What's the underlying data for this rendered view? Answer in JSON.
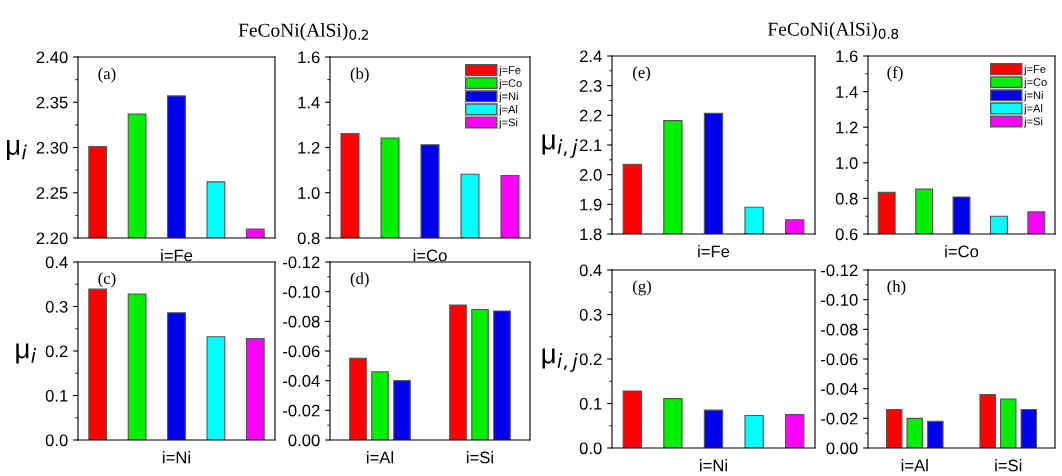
{
  "chart_data": [
    {
      "type": "bar",
      "stacked": true,
      "title": "FeCoNi(AlSi)$_{0.2}$",
      "ylabel": "μ$_{i}$",
      "annotations": [
        "(a)"
      ],
      "categories": [
        null,
        null,
        "i=Fe",
        null,
        null
      ],
      "ylim": [
        2.2,
        2.4
      ],
      "yticks": [
        {
          "value": 2.2,
          "label": "2.20"
        },
        2.25,
        {
          "value": 2.3,
          "label": "2.30"
        },
        2.35,
        {
          "value": 2.4,
          "label": "2.40"
        }
      ],
      "grid": false,
      "legend": false,
      "series": [
        {
          "color": "#ff0000",
          "values": [
            2.301,
            null,
            null,
            null,
            null
          ]
        },
        {
          "color": "#00ee00",
          "values": [
            null,
            2.337,
            null,
            null,
            null
          ]
        },
        {
          "color": "#0000ee",
          "values": [
            null,
            null,
            2.357,
            null,
            null
          ]
        },
        {
          "color": "#00ffff",
          "values": [
            null,
            null,
            null,
            2.262,
            null
          ]
        },
        {
          "color": "#ff00ff",
          "values": [
            null,
            null,
            null,
            null,
            2.21
          ]
        }
      ]
    },
    {
      "type": "bar",
      "stacked": true,
      "annotations": [
        "(b)"
      ],
      "categories": [
        null,
        null,
        "i=Co",
        null,
        null
      ],
      "ylim": [
        0.8,
        1.6
      ],
      "yticks": [
        0.8,
        {
          "value": 1,
          "label": "1.0"
        },
        1.2,
        1.4,
        1.6
      ],
      "grid": false,
      "legend": "top right",
      "series": [
        {
          "name": "j=Fe",
          "color": "#ff0000",
          "values": [
            1.262,
            null,
            null,
            null,
            null
          ]
        },
        {
          "name": "j=Co",
          "color": "#00ee00",
          "values": [
            null,
            1.242,
            null,
            null,
            null
          ]
        },
        {
          "name": "j=Ni",
          "color": "#0000ee",
          "values": [
            null,
            null,
            1.212,
            null,
            null
          ]
        },
        {
          "name": "j=Al",
          "color": "#00ffff",
          "values": [
            null,
            null,
            null,
            1.082,
            null
          ]
        },
        {
          "name": "j=Si",
          "color": "#ff00ff",
          "values": [
            null,
            null,
            null,
            null,
            1.076
          ]
        }
      ]
    },
    {
      "type": "bar",
      "stacked": true,
      "ylabel": "μ$_{i}$",
      "annotations": [
        "(c)"
      ],
      "categories": [
        null,
        null,
        "i=Ni",
        null,
        null
      ],
      "ylim": [
        0,
        0.4
      ],
      "yticks": [
        {
          "value": 0,
          "label": "0.0"
        },
        0.1,
        0.2,
        0.3,
        0.4
      ],
      "grid": false,
      "legend": false,
      "series": [
        {
          "color": "#ff0000",
          "values": [
            0.339,
            null,
            null,
            null,
            null
          ]
        },
        {
          "color": "#00ee00",
          "values": [
            null,
            0.328,
            null,
            null,
            null
          ]
        },
        {
          "color": "#0000ee",
          "values": [
            null,
            null,
            0.286,
            null,
            null
          ]
        },
        {
          "color": "#00ffff",
          "values": [
            null,
            null,
            null,
            0.232,
            null
          ]
        },
        {
          "color": "#ff00ff",
          "values": [
            null,
            null,
            null,
            null,
            0.228
          ]
        }
      ]
    },
    {
      "type": "bar",
      "annotations": [
        "(d)"
      ],
      "categories": [
        "i=Al",
        "i=Si"
      ],
      "ylim": [
        0,
        -0.12
      ],
      "yticks": [
        {
          "value": 0,
          "label": "0.00"
        },
        {
          "value": -0.02,
          "label": "-0.02"
        },
        {
          "value": -0.04,
          "label": "-0.04"
        },
        {
          "value": -0.06,
          "label": "-0.06"
        },
        {
          "value": -0.08,
          "label": "-0.08"
        },
        {
          "value": -0.1,
          "label": "-0.10"
        },
        {
          "value": -0.12,
          "label": "-0.12"
        }
      ],
      "grid": false,
      "legend": false,
      "series": [
        {
          "color": "#ff0000",
          "values": [
            -0.055,
            -0.091
          ]
        },
        {
          "color": "#00ee00",
          "values": [
            -0.046,
            -0.088
          ]
        },
        {
          "color": "#0000ee",
          "values": [
            -0.04,
            -0.087
          ]
        }
      ]
    },
    {
      "type": "bar",
      "stacked": true,
      "title": "FeCoNi(AlSi)$_{0.8}$",
      "ylabel": "μ$_{i,j}$",
      "annotations": [
        "(e)"
      ],
      "categories": [
        null,
        null,
        "i=Fe",
        null,
        null
      ],
      "ylim": [
        1.8,
        2.4
      ],
      "yticks": [
        1.8,
        1.9,
        {
          "value": 2.0,
          "label": "2.0"
        },
        2.1,
        2.2,
        2.3,
        2.4
      ],
      "grid": false,
      "legend": false,
      "series": [
        {
          "color": "#ff0000",
          "values": [
            2.035,
            null,
            null,
            null,
            null
          ]
        },
        {
          "color": "#00ee00",
          "values": [
            null,
            2.182,
            null,
            null,
            null
          ]
        },
        {
          "color": "#0000ee",
          "values": [
            null,
            null,
            2.207,
            null,
            null
          ]
        },
        {
          "color": "#00ffff",
          "values": [
            null,
            null,
            null,
            1.89,
            null
          ]
        },
        {
          "color": "#ff00ff",
          "values": [
            null,
            null,
            null,
            null,
            1.848
          ]
        }
      ]
    },
    {
      "type": "bar",
      "stacked": true,
      "annotations": [
        "(f)"
      ],
      "categories": [
        null,
        null,
        "i=Co",
        null,
        null
      ],
      "ylim": [
        0.6,
        1.6
      ],
      "yticks": [
        0.6,
        0.8,
        {
          "value": 1,
          "label": "1.0"
        },
        1.2,
        1.4,
        1.6
      ],
      "grid": false,
      "legend": "top right",
      "series": [
        {
          "name": "j=Fe",
          "color": "#ff0000",
          "values": [
            0.834,
            null,
            null,
            null,
            null
          ]
        },
        {
          "name": "j=Co",
          "color": "#00ee00",
          "values": [
            null,
            0.852,
            null,
            null,
            null
          ]
        },
        {
          "name": "j=Ni",
          "color": "#0000ee",
          "values": [
            null,
            null,
            0.808,
            null,
            null
          ]
        },
        {
          "name": "j=Al",
          "color": "#00ffff",
          "values": [
            null,
            null,
            null,
            0.7,
            null
          ]
        },
        {
          "name": "j=Si",
          "color": "#ff00ff",
          "values": [
            null,
            null,
            null,
            null,
            0.724
          ]
        }
      ]
    },
    {
      "type": "bar",
      "stacked": true,
      "ylabel": "μ$_{i,j}$",
      "annotations": [
        "(g)"
      ],
      "categories": [
        null,
        null,
        "i=Ni",
        null,
        null
      ],
      "ylim": [
        0,
        0.4
      ],
      "yticks": [
        {
          "value": 0,
          "label": "0.0"
        },
        0.1,
        0.2,
        0.3,
        0.4
      ],
      "grid": false,
      "legend": false,
      "series": [
        {
          "color": "#ff0000",
          "values": [
            0.128,
            null,
            null,
            null,
            null
          ]
        },
        {
          "color": "#00ee00",
          "values": [
            null,
            0.111,
            null,
            null,
            null
          ]
        },
        {
          "color": "#0000ee",
          "values": [
            null,
            null,
            0.085,
            null,
            null
          ]
        },
        {
          "color": "#00ffff",
          "values": [
            null,
            null,
            null,
            0.073,
            null
          ]
        },
        {
          "color": "#ff00ff",
          "values": [
            null,
            null,
            null,
            null,
            0.075
          ]
        }
      ]
    },
    {
      "type": "bar",
      "annotations": [
        "(h)"
      ],
      "categories": [
        "i=Al",
        "i=Si"
      ],
      "ylim": [
        0,
        -0.12
      ],
      "yticks": [
        {
          "value": 0,
          "label": "0.00"
        },
        {
          "value": -0.02,
          "label": "-0.02"
        },
        {
          "value": -0.04,
          "label": "-0.04"
        },
        {
          "value": -0.06,
          "label": "-0.06"
        },
        {
          "value": -0.08,
          "label": "-0.08"
        },
        {
          "value": -0.1,
          "label": "-0.10"
        },
        {
          "value": -0.12,
          "label": "-0.12"
        }
      ],
      "grid": false,
      "legend": false,
      "series": [
        {
          "color": "#ff0000",
          "values": [
            -0.026,
            -0.036
          ]
        },
        {
          "color": "#00ee00",
          "values": [
            -0.02,
            -0.033
          ]
        },
        {
          "color": "#0000ee",
          "values": [
            -0.018,
            -0.026
          ]
        }
      ]
    }
  ]
}
